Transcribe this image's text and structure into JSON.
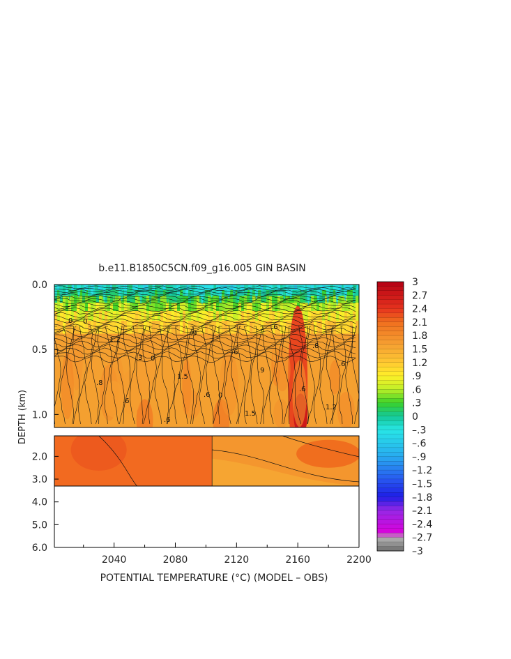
{
  "chart_data": {
    "type": "heatmap",
    "title": "b.e11.B1850C5CN.f09_g16.005 GIN BASIN",
    "xlabel": "POTENTIAL TEMPERATURE (°C) (MODEL – OBS)",
    "ylabel": "DEPTH (km)",
    "x_ticks": [
      "2040",
      "2080",
      "2120",
      "2160",
      "2200"
    ],
    "x_range": [
      2001,
      2200
    ],
    "upper_panel": {
      "depth_range": [
        0.0,
        1.1
      ],
      "y_ticks": [
        "0.0",
        "0.5",
        "1.0"
      ]
    },
    "lower_panel": {
      "depth_range": [
        1.1,
        6.0
      ],
      "y_ticks": [
        "2.0",
        "3.0",
        "4.0",
        "5.0",
        "6.0"
      ],
      "data_bottom_km": 3.3
    },
    "colorbar": {
      "range": [
        -3,
        3
      ],
      "labels": [
        "3",
        "2.7",
        "2.4",
        "2.1",
        "1.8",
        "1.5",
        "1.2",
        ".9",
        ".6",
        ".3",
        "0",
        "–.3",
        "–.6",
        "–.9",
        "–1.2",
        "–1.5",
        "–1.8",
        "–2.1",
        "–2.4",
        "–2.7",
        "–3"
      ]
    },
    "contour_labels": [
      "0",
      ".3",
      ".6",
      ".6",
      ".6",
      ".6",
      ".9",
      ".9",
      "1.2",
      "1.2",
      "1.5",
      "1.5",
      ".8",
      ".8",
      ".6",
      ".6",
      ".6",
      "0",
      "0",
      "0"
    ],
    "features": [
      {
        "x": 2160,
        "depth_km": 0.7,
        "value": 2.3
      },
      {
        "x": 2060,
        "depth_km": 1.0,
        "value": 1.9
      },
      {
        "x": 2110,
        "depth_km": 1.0,
        "value": 1.9
      },
      {
        "x": 2180,
        "depth_km": 2.5,
        "value": 1.9
      }
    ]
  }
}
